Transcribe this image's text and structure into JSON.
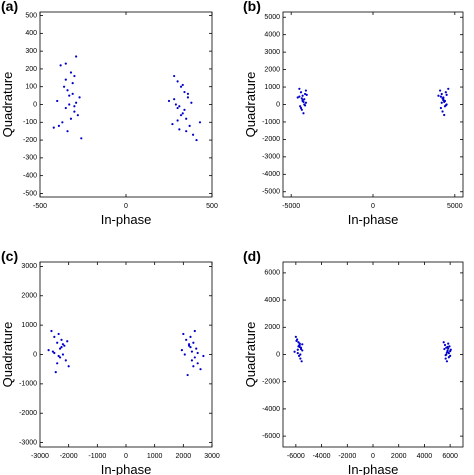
{
  "chart_data": [
    {
      "type": "scatter",
      "label": "(a)",
      "xlabel": "In-phase",
      "ylabel": "Quadrature",
      "color": "#0000cc",
      "xlim": [
        -500,
        500
      ],
      "ylim": [
        -520,
        520
      ],
      "xticks": [
        -500,
        0,
        500
      ],
      "yticks": [
        -500,
        -400,
        -300,
        -200,
        -100,
        0,
        100,
        200,
        300,
        400,
        500
      ],
      "x": [
        -380,
        -350,
        -320,
        -300,
        -290,
        -360,
        -340,
        -310,
        -270,
        -400,
        -330,
        -350,
        -300,
        -280,
        -320,
        -370,
        -390,
        -340,
        -260,
        -310,
        -350,
        -330,
        -300,
        -420,
        -290,
        280,
        300,
        320,
        340,
        360,
        380,
        300,
        330,
        350,
        270,
        310,
        390,
        410,
        290,
        340,
        360,
        320,
        250,
        370,
        300,
        330,
        430,
        280,
        350,
        310
      ],
      "y": [
        220,
        230,
        180,
        160,
        270,
        100,
        80,
        60,
        40,
        20,
        0,
        -20,
        -40,
        -60,
        -80,
        -100,
        -120,
        -150,
        -190,
        120,
        140,
        50,
        -10,
        -130,
        10,
        160,
        130,
        100,
        70,
        40,
        10,
        -20,
        -50,
        -80,
        -110,
        -140,
        -170,
        -200,
        0,
        -30,
        60,
        -60,
        20,
        -120,
        -90,
        110,
        -100,
        30,
        -150,
        -10
      ]
    },
    {
      "type": "scatter",
      "label": "(b)",
      "xlabel": "In-phase",
      "ylabel": "Quadrature",
      "color": "#0000cc",
      "xlim": [
        -5500,
        5500
      ],
      "ylim": [
        -5300,
        5300
      ],
      "xticks": [
        -5000,
        0,
        5000
      ],
      "yticks": [
        -5000,
        -4000,
        -3000,
        -2000,
        -1000,
        0,
        1000,
        2000,
        3000,
        4000,
        5000
      ],
      "x": [
        -4500,
        -4400,
        -4300,
        -4200,
        -4100,
        -4450,
        -4350,
        -4250,
        -4150,
        -4600,
        -4300,
        -4200,
        -4400,
        -4100,
        -4350,
        -4250,
        -4500,
        -4150,
        -4300,
        -4050,
        4100,
        4200,
        4300,
        4400,
        4500,
        4150,
        4250,
        4350,
        4450,
        4000,
        4300,
        4200,
        4400,
        4600,
        4250,
        4350,
        4150,
        4450,
        4300,
        4500
      ],
      "y": [
        900,
        700,
        500,
        300,
        100,
        -100,
        -300,
        -500,
        600,
        400,
        200,
        0,
        -200,
        800,
        350,
        150,
        450,
        -50,
        250,
        550,
        800,
        600,
        400,
        200,
        0,
        -200,
        -400,
        -600,
        700,
        500,
        300,
        100,
        -100,
        900,
        350,
        150,
        450,
        -50,
        250,
        550
      ]
    },
    {
      "type": "scatter",
      "label": "(c)",
      "xlabel": "In-phase",
      "ylabel": "Quadrature",
      "color": "#0000cc",
      "xlim": [
        -3000,
        3000
      ],
      "ylim": [
        -3150,
        3150
      ],
      "xticks": [
        -3000,
        -2000,
        -1000,
        0,
        1000,
        2000,
        3000
      ],
      "yticks": [
        -3000,
        -2000,
        -1000,
        0,
        1000,
        2000,
        3000
      ],
      "x": [
        -2600,
        -2500,
        -2400,
        -2300,
        -2200,
        -2100,
        -2000,
        -2450,
        -2350,
        -2250,
        -2150,
        -2550,
        -2300,
        -2400,
        -2200,
        -2700,
        -2050,
        -2350,
        -2250,
        -2500,
        2000,
        2100,
        2200,
        2300,
        2400,
        2500,
        2600,
        2150,
        2250,
        2350,
        2450,
        2050,
        2300,
        2400,
        2200,
        2700,
        1950,
        2350,
        2250,
        2500
      ],
      "y": [
        800,
        600,
        400,
        200,
        0,
        -200,
        -400,
        -600,
        700,
        500,
        300,
        100,
        -100,
        -300,
        350,
        150,
        450,
        -50,
        250,
        50,
        700,
        500,
        300,
        100,
        -100,
        -300,
        -500,
        -700,
        600,
        400,
        200,
        0,
        -200,
        800,
        350,
        -50,
        150,
        -400,
        250,
        50
      ]
    },
    {
      "type": "scatter",
      "label": "(d)",
      "xlabel": "In-phase",
      "ylabel": "Quadrature",
      "color": "#0000cc",
      "xlim": [
        -7000,
        7000
      ],
      "ylim": [
        -6800,
        6800
      ],
      "xticks": [
        -6000,
        -4000,
        -2000,
        0,
        2000,
        4000,
        6000
      ],
      "yticks": [
        -6000,
        -4000,
        -2000,
        0,
        2000,
        4000,
        6000
      ],
      "x": [
        -6000,
        -5900,
        -5800,
        -5700,
        -5600,
        -5500,
        -5850,
        -5750,
        -5650,
        -5550,
        -5950,
        -5700,
        -5800,
        -5600,
        -6100,
        -5650,
        -5750,
        -5850,
        -5500,
        -5700,
        5500,
        5600,
        5700,
        5800,
        5900,
        6000,
        5650,
        5750,
        5850,
        5950,
        5550,
        5800,
        5700,
        5900,
        6050,
        5750,
        5850,
        5650,
        6000,
        5800
      ],
      "y": [
        1300,
        1100,
        900,
        700,
        500,
        300,
        100,
        -100,
        -300,
        -500,
        1000,
        800,
        600,
        400,
        200,
        0,
        650,
        350,
        750,
        550,
        900,
        700,
        500,
        300,
        100,
        -100,
        -300,
        -500,
        800,
        600,
        400,
        200,
        0,
        -200,
        350,
        150,
        450,
        -50,
        250,
        550
      ]
    }
  ]
}
